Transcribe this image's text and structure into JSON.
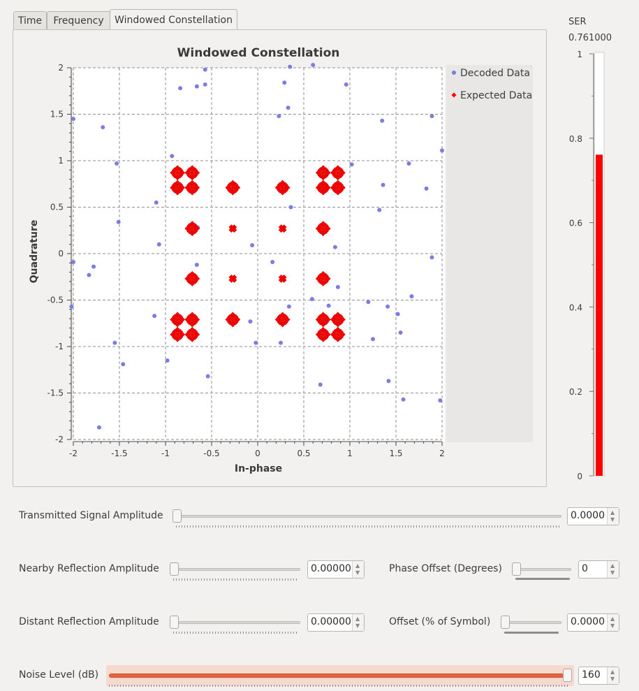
{
  "tabs": [
    "Time",
    "Frequency",
    "Windowed Constellation"
  ],
  "plot": {
    "title": "Windowed Constellation",
    "xlabel": "In-phase",
    "ylabel": "Quadrature",
    "legend": [
      "Decoded Data",
      "Expected Data"
    ]
  },
  "chart_data": {
    "type": "scatter",
    "title": "Windowed Constellation",
    "xlabel": "In-phase",
    "ylabel": "Quadrature",
    "xlim": [
      -2,
      2
    ],
    "ylim": [
      -2,
      2
    ],
    "xticks": [
      "-2",
      "-1.5",
      "-1",
      "-0.5",
      "0",
      "0.5",
      "1",
      "1.5",
      "2"
    ],
    "yticks": [
      "2",
      "1.5",
      "1",
      "0.5",
      "0",
      "-0.5",
      "-1",
      "-1.5",
      "-2"
    ],
    "grid": true,
    "legend_position": "top-right",
    "series": [
      {
        "name": "Decoded Data",
        "color": "#7b7de3",
        "points": [
          [
            -0.57,
            1.98
          ],
          [
            -0.66,
            1.8
          ],
          [
            -0.84,
            1.78
          ],
          [
            -0.57,
            1.82
          ],
          [
            0.35,
            2.01
          ],
          [
            0.6,
            2.03
          ],
          [
            0.29,
            1.84
          ],
          [
            0.96,
            1.82
          ],
          [
            0.33,
            1.57
          ],
          [
            0.23,
            1.48
          ],
          [
            -2.0,
            1.45
          ],
          [
            -1.68,
            1.36
          ],
          [
            1.35,
            1.43
          ],
          [
            1.89,
            1.48
          ],
          [
            -0.93,
            1.05
          ],
          [
            -1.53,
            0.97
          ],
          [
            1.02,
            0.96
          ],
          [
            1.64,
            0.97
          ],
          [
            2.0,
            1.11
          ],
          [
            -1.1,
            0.55
          ],
          [
            1.32,
            0.47
          ],
          [
            1.36,
            0.74
          ],
          [
            1.83,
            0.7
          ],
          [
            -1.51,
            0.34
          ],
          [
            -0.65,
            0.28
          ],
          [
            0.36,
            0.5
          ],
          [
            -1.07,
            0.1
          ],
          [
            -0.06,
            0.09
          ],
          [
            0.84,
            0.07
          ],
          [
            -2.0,
            -0.09
          ],
          [
            -1.78,
            -0.14
          ],
          [
            -1.83,
            -0.23
          ],
          [
            -0.66,
            -0.12
          ],
          [
            0.16,
            -0.09
          ],
          [
            1.89,
            -0.04
          ],
          [
            0.87,
            -0.36
          ],
          [
            -2.02,
            -0.57
          ],
          [
            0.34,
            -0.57
          ],
          [
            0.59,
            -0.49
          ],
          [
            0.77,
            -0.56
          ],
          [
            1.2,
            -0.52
          ],
          [
            1.41,
            -0.57
          ],
          [
            1.52,
            -0.65
          ],
          [
            1.67,
            -0.46
          ],
          [
            -1.12,
            -0.67
          ],
          [
            -0.08,
            -0.73
          ],
          [
            -1.55,
            -0.96
          ],
          [
            -0.02,
            -0.96
          ],
          [
            0.25,
            -0.96
          ],
          [
            1.25,
            -0.92
          ],
          [
            1.55,
            -0.85
          ],
          [
            -0.98,
            -1.15
          ],
          [
            -1.46,
            -1.19
          ],
          [
            -0.54,
            -1.32
          ],
          [
            0.68,
            -1.41
          ],
          [
            1.42,
            -1.37
          ],
          [
            1.58,
            -1.57
          ],
          [
            1.98,
            -1.58
          ],
          [
            -1.72,
            -1.87
          ]
        ]
      },
      {
        "name": "Expected Data",
        "color": "#ff0000",
        "points": [
          [
            -0.87,
            0.87
          ],
          [
            -0.71,
            0.87
          ],
          [
            -0.87,
            0.71
          ],
          [
            -0.71,
            0.71
          ],
          [
            -0.71,
            0.27
          ],
          [
            -0.27,
            0.71
          ],
          [
            -0.27,
            0.27
          ],
          [
            0.27,
            0.71
          ],
          [
            0.27,
            0.27
          ],
          [
            0.71,
            0.87
          ],
          [
            0.87,
            0.87
          ],
          [
            0.71,
            0.71
          ],
          [
            0.87,
            0.71
          ],
          [
            0.71,
            0.27
          ],
          [
            -0.71,
            -0.27
          ],
          [
            -0.27,
            -0.27
          ],
          [
            -0.27,
            -0.71
          ],
          [
            0.27,
            -0.27
          ],
          [
            0.27,
            -0.71
          ],
          [
            0.71,
            -0.27
          ],
          [
            -0.87,
            -0.71
          ],
          [
            -0.71,
            -0.71
          ],
          [
            -0.87,
            -0.87
          ],
          [
            -0.71,
            -0.87
          ],
          [
            0.71,
            -0.71
          ],
          [
            0.87,
            -0.71
          ],
          [
            0.71,
            -0.87
          ],
          [
            0.87,
            -0.87
          ]
        ]
      }
    ]
  },
  "ser": {
    "label": "SER",
    "value_text": "0.761000",
    "value": 0.761,
    "range": [
      0,
      1
    ],
    "ticks": [
      "1",
      "0.8",
      "0.6",
      "0.4",
      "0.2",
      "0"
    ],
    "bar_color": "#ff0000"
  },
  "controls": {
    "tx_amplitude": {
      "label": "Transmitted Signal Amplitude",
      "value": "0.0000",
      "level": 0
    },
    "nearby_reflection": {
      "label": "Nearby Reflection Amplitude",
      "value": "0.00000",
      "level": 0
    },
    "phase_offset": {
      "label": "Phase Offset (Degrees)",
      "value": "0",
      "level": 0
    },
    "distant_reflection": {
      "label": "Distant Reflection Amplitude",
      "value": "0.00000",
      "level": 0
    },
    "symbol_offset": {
      "label": "Offset (% of Symbol)",
      "value": "0.0000",
      "level": 0
    },
    "noise_level": {
      "label": "Noise Level (dB)",
      "value": "160",
      "level": 1
    }
  }
}
